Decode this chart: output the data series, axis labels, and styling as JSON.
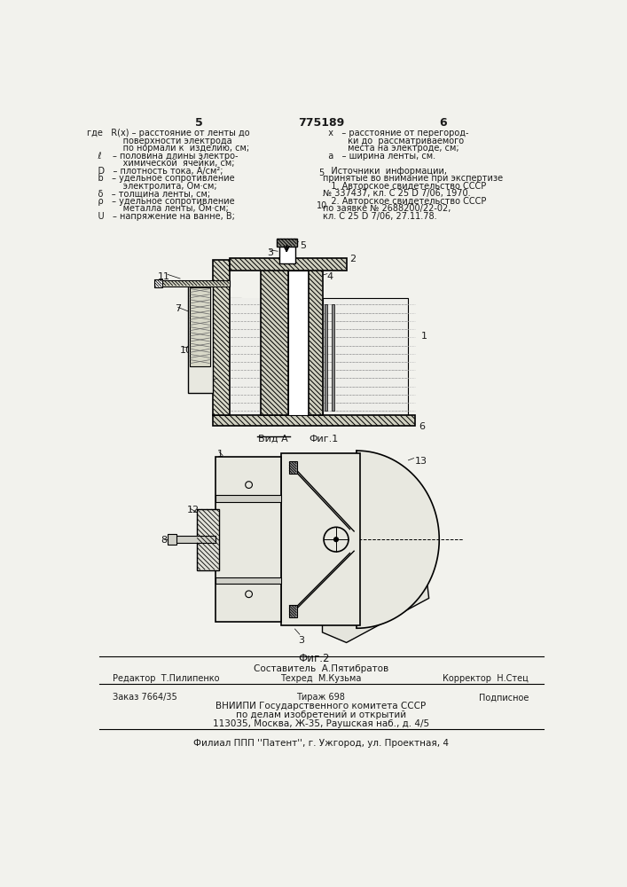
{
  "page_number_left": "5",
  "page_number_right": "6",
  "patent_number": "775189",
  "bg_color": "#f2f2ed",
  "text_color": "#1a1a1a",
  "fig1_label": "Фиг.1",
  "vid_a_label": "Вид А",
  "fig2_label": "Фиг.2",
  "bottom_line1": "Составитель  А.Пятибратов",
  "bottom_line2_left": "Редактор  Т.Пилипенко",
  "bottom_line2_mid": "Техред  М.Кузьма",
  "bottom_line2_right": "Корректор  Н.Стец",
  "bottom_line3_left": "Заказ 7664/35",
  "bottom_line3_mid": "Тираж 698",
  "bottom_line3_right": "Подписное",
  "bottom_line4": "ВНИИПИ Государственного комитета СССР",
  "bottom_line5": "по делам изобретений и открытий",
  "bottom_line6": "113035, Москва, Ж-35, Раушская наб., д. 4/5",
  "bottom_line7": "Филиал ППП ''Патент'', г. Ужгород, ул. Проектная, 4"
}
